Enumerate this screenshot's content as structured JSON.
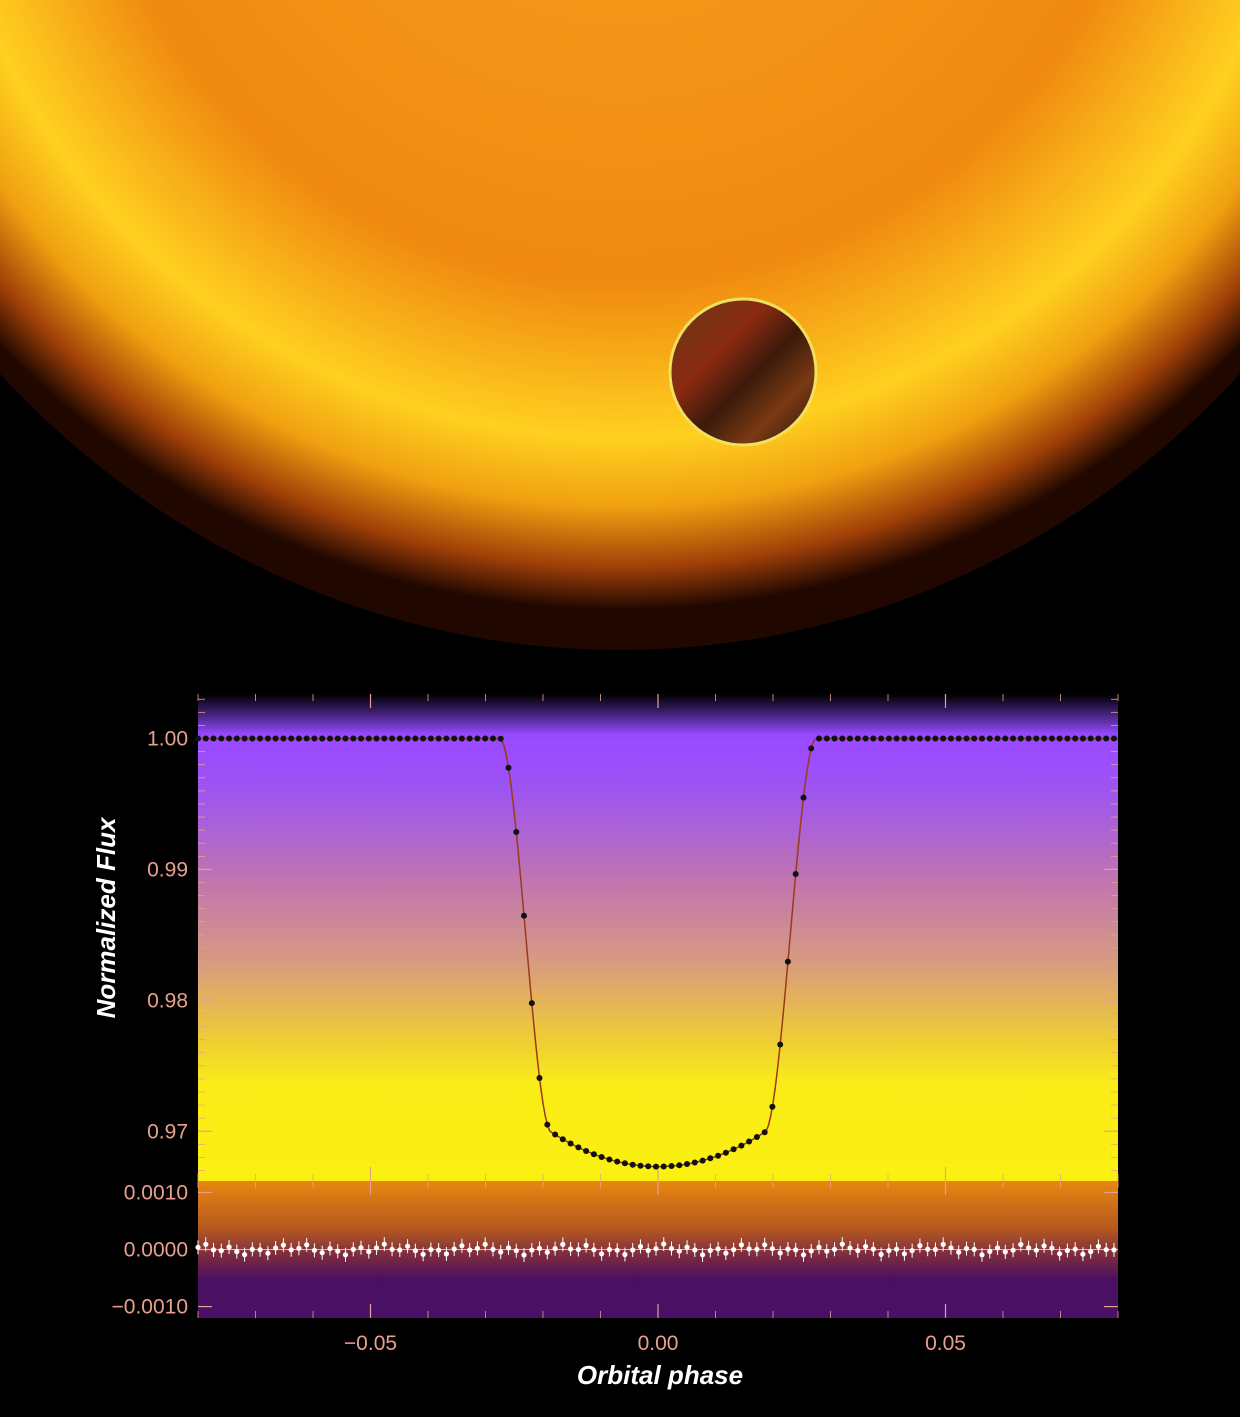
{
  "colors": {
    "tick_label": "#e8a08e",
    "axis_title": "#ffffff",
    "main_points": "#111111",
    "residual_points": "#ffffff",
    "model_line": "#9a3a1a"
  },
  "chart_data": [
    {
      "type": "scatter",
      "panel": "light-curve",
      "title": "",
      "xlabel": "",
      "ylabel": "Normalized Flux",
      "xlim": [
        -0.08,
        0.08
      ],
      "ylim": [
        0.9662,
        1.0034
      ],
      "yticks": [
        1.0,
        0.99,
        0.98,
        0.97
      ],
      "ytick_labels": [
        "1.00",
        "0.99",
        "0.98",
        "0.97"
      ],
      "xticks": [
        -0.05,
        0.0,
        0.05
      ],
      "xtick_labels": [
        "−0.05",
        "0.00",
        "0.05"
      ],
      "transit": {
        "ingress_start": -0.0275,
        "full_start": -0.0185,
        "full_end": 0.0185,
        "egress_end": 0.0275,
        "depth": 0.0327
      },
      "point_spacing": 0.00135
    },
    {
      "type": "scatter",
      "panel": "residuals",
      "xlabel": "Orbital phase",
      "ylabel": "",
      "xlim": [
        -0.08,
        0.08
      ],
      "ylim": [
        -0.0012,
        0.0012
      ],
      "yticks": [
        0.001,
        0.0,
        -0.001
      ],
      "ytick_labels": [
        "0.0010",
        "0.0000",
        "−0.0010"
      ],
      "xticks": [
        -0.05,
        0.0,
        0.05
      ],
      "xtick_labels": [
        "−0.05",
        "0.00",
        "0.05"
      ],
      "zero_line": 0.0,
      "scatter_amplitude": 8e-05
    }
  ]
}
